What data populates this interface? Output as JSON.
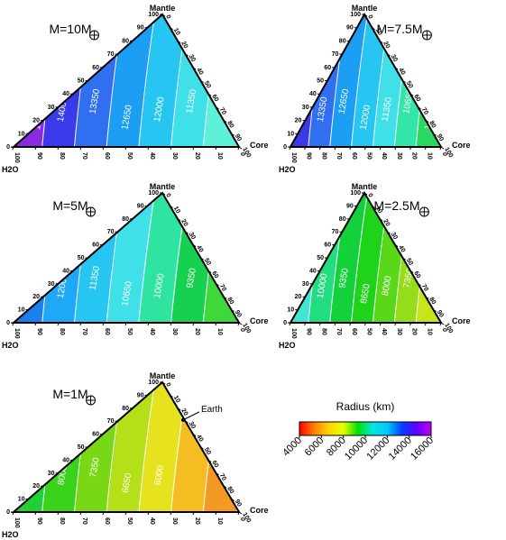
{
  "chart_data": [
    {
      "type": "ternary-contour",
      "mass_label": "M=10M",
      "axes": {
        "top": "Mantle",
        "right": "Core",
        "left": "H2O"
      },
      "contour_labels": [
        "14650",
        "14000",
        "13350",
        "12650",
        "12000",
        "11350"
      ],
      "colors": [
        "#8a2be2",
        "#3a3ae8",
        "#2f6ff0",
        "#1c9ef5",
        "#27c6f2",
        "#3fe0e8",
        "#5ef0d8"
      ]
    },
    {
      "type": "ternary-contour",
      "mass_label": "M=7.5M",
      "axes": {
        "top": "Mantle",
        "right": "Core",
        "left": "H2O"
      },
      "contour_labels": [
        "14000",
        "13350",
        "12650",
        "12000",
        "11350",
        "10650",
        "10000"
      ],
      "colors": [
        "#3a3ae8",
        "#2f6ff0",
        "#1c9ef5",
        "#27c6f2",
        "#3fe0e8",
        "#33e6a8",
        "#2ad860"
      ]
    },
    {
      "type": "ternary-contour",
      "mass_label": "M=5M",
      "axes": {
        "top": "Mantle",
        "right": "Core",
        "left": "H2O"
      },
      "contour_labels": [
        "12650",
        "12000",
        "11350",
        "10650",
        "10000",
        "9350"
      ],
      "colors": [
        "#1c7ff0",
        "#1ea8f5",
        "#27c6f2",
        "#3fe0e8",
        "#2fe3a0",
        "#18d050",
        "#3fd83a"
      ]
    },
    {
      "type": "ternary-contour",
      "mass_label": "M=2.5M",
      "axes": {
        "top": "Mantle",
        "right": "Core",
        "left": "H2O"
      },
      "contour_labels": [
        "10650",
        "10000",
        "9350",
        "8650",
        "8000",
        "7350"
      ],
      "colors": [
        "#40e6d0",
        "#22dc80",
        "#13d13a",
        "#1fd21a",
        "#58d818",
        "#95dd18",
        "#c9e31c"
      ]
    },
    {
      "type": "ternary-contour",
      "mass_label": "M=1M",
      "axes": {
        "top": "Mantle",
        "right": "Core",
        "left": "H2O"
      },
      "contour_labels": [
        "8650",
        "8000",
        "7350",
        "6650",
        "6000"
      ],
      "colors": [
        "#20d034",
        "#3ad21a",
        "#78d816",
        "#b5df18",
        "#e6e21e",
        "#f5bd22",
        "#f39a24"
      ],
      "annotation": "Earth"
    }
  ],
  "tick_labels": [
    "0",
    "10",
    "20",
    "30",
    "40",
    "50",
    "60",
    "70",
    "80",
    "90",
    "100"
  ],
  "colorbar": {
    "title": "Radius (km)",
    "ticks": [
      "4000",
      "6000",
      "8000",
      "10000",
      "12000",
      "14000",
      "16000"
    ],
    "range": [
      4000,
      16000
    ],
    "colors": [
      "#ff0000",
      "#ff7f00",
      "#ffd400",
      "#e8ff00",
      "#00e000",
      "#00e8e0",
      "#00c8ff",
      "#0040ff",
      "#6000ff",
      "#c000ff"
    ]
  }
}
